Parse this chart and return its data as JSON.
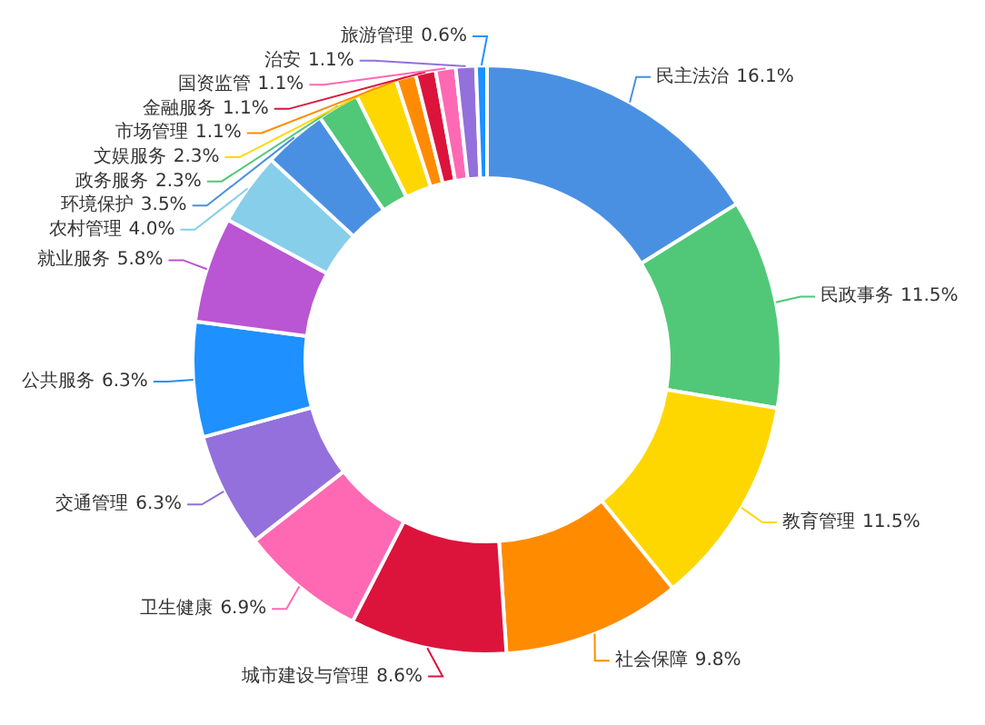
{
  "chart_data": {
    "type": "donut",
    "value_labels": [
      "16.1%",
      "11.5%",
      "11.5%",
      "9.8%",
      "8.6%",
      "6.9%",
      "6.3%",
      "6.3%",
      "5.8%",
      "4.0%",
      "3.5%",
      "2.3%",
      "2.3%",
      "1.1%",
      "1.1%",
      "1.1%",
      "1.1%",
      "0.6%"
    ],
    "categories": [
      "民主法治",
      "民政事务",
      "教育管理",
      "社会保障",
      "城市建设与管理",
      "卫生健康",
      "交通管理",
      "公共服务",
      "就业服务",
      "农村管理",
      "环境保护",
      "政务服务",
      "文娱服务",
      "市场管理",
      "金融服务",
      "国资监管",
      "治安",
      "旅游管理"
    ],
    "values": [
      16.1,
      11.5,
      11.5,
      9.8,
      8.6,
      6.9,
      6.3,
      6.3,
      5.8,
      4.0,
      3.5,
      2.3,
      2.3,
      1.1,
      1.1,
      1.1,
      1.1,
      0.6
    ],
    "colors": [
      "#4a90e2",
      "#50c878",
      "#ffd700",
      "#ff8c00",
      "#dc143c",
      "#ff69b4",
      "#9370db",
      "#1e90ff",
      "#ba55d3",
      "#87ceeb",
      "#4a90e2",
      "#50c878",
      "#ffd700",
      "#ff8c00",
      "#dc143c",
      "#ff69b4",
      "#9370db",
      "#1e90ff"
    ]
  }
}
